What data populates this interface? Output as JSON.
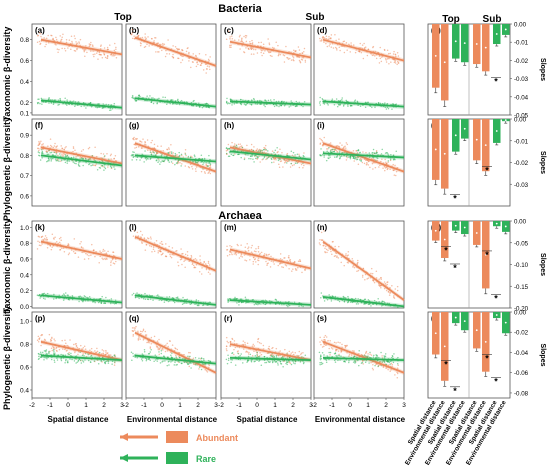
{
  "figure": {
    "title_bacteria": "Bacteria",
    "title_archaea": "Archaea",
    "col_top": "Top",
    "col_sub": "Sub",
    "bar_col_top": "Top",
    "bar_col_sub": "Sub",
    "row_labels": [
      "Taxonomic β-diversity",
      "Phylogenetic β-diversity",
      "Taxonomic β-diversity",
      "Phylogenetic β-diversity"
    ],
    "x_labels": [
      "Spatial distance",
      "Environmental distance",
      "Spatial distance",
      "Environmental distance"
    ],
    "x_ticks": [
      "-2",
      "-1",
      "0",
      "1",
      "2",
      "3"
    ],
    "bar_x_labels": [
      "Spatial distance",
      "Environmental distance",
      "Spatial distance",
      "Environmental distance"
    ],
    "slopes_label": "Slopes",
    "star": "*"
  },
  "legend": {
    "abundant_label": "Abundant",
    "rare_label": "Rare",
    "abundant_color": "#ec8a5c",
    "rare_color": "#2eb25a"
  },
  "chart_data": [
    {
      "type": "scatter",
      "panel": "(a)",
      "domain": "Bacteria",
      "layer": "Top",
      "x_variable": "Spatial distance",
      "yticks": [
        "0.8",
        "0.6",
        "0.4",
        "0.2",
        "0.1"
      ],
      "abundant_fit": [
        [
          -1.5,
          0.8
        ],
        [
          3,
          0.66
        ]
      ],
      "rare_fit": [
        [
          -1.5,
          0.22
        ],
        [
          3,
          0.15
        ]
      ]
    },
    {
      "type": "scatter",
      "panel": "(b)",
      "domain": "Bacteria",
      "layer": "Top",
      "x_variable": "Environmental distance",
      "yticks": [],
      "abundant_fit": [
        [
          -1.5,
          0.82
        ],
        [
          3,
          0.55
        ]
      ],
      "rare_fit": [
        [
          -1.5,
          0.24
        ],
        [
          3,
          0.16
        ]
      ]
    },
    {
      "type": "scatter",
      "panel": "(c)",
      "domain": "Bacteria",
      "layer": "Sub",
      "x_variable": "Spatial distance",
      "yticks": [],
      "abundant_fit": [
        [
          -1.5,
          0.78
        ],
        [
          3,
          0.63
        ]
      ],
      "rare_fit": [
        [
          -1.5,
          0.21
        ],
        [
          3,
          0.18
        ]
      ]
    },
    {
      "type": "scatter",
      "panel": "(d)",
      "domain": "Bacteria",
      "layer": "Sub",
      "x_variable": "Environmental distance",
      "yticks": [],
      "abundant_fit": [
        [
          -1.5,
          0.8
        ],
        [
          3,
          0.6
        ]
      ],
      "rare_fit": [
        [
          -1.5,
          0.21
        ],
        [
          3,
          0.16
        ]
      ]
    },
    {
      "type": "bar",
      "panel": "(e)",
      "domain": "Bacteria",
      "metric": "Taxonomic",
      "yticks": [
        "0.00",
        "-0.01",
        "-0.02",
        "-0.03",
        "-0.04",
        "-0.05"
      ],
      "ylim": [
        -0.05,
        0
      ],
      "groups": [
        "Top",
        "Sub"
      ],
      "categories": [
        "Spatial distance",
        "Environmental distance"
      ],
      "abundant": [
        -0.035,
        -0.042,
        -0.022,
        -0.026
      ],
      "rare": [
        -0.019,
        -0.021,
        -0.011,
        -0.006
      ],
      "significant": [
        false,
        false,
        false,
        true
      ]
    },
    {
      "type": "scatter",
      "panel": "(f)",
      "domain": "Bacteria",
      "layer": "Top",
      "x_variable": "Spatial distance",
      "yticks": [
        "0.9",
        "0.8",
        "0.7",
        "0.6"
      ],
      "abundant_fit": [
        [
          -1.5,
          0.84
        ],
        [
          3,
          0.76
        ]
      ],
      "rare_fit": [
        [
          -1.5,
          0.8
        ],
        [
          3,
          0.75
        ]
      ]
    },
    {
      "type": "scatter",
      "panel": "(g)",
      "domain": "Bacteria",
      "layer": "Top",
      "x_variable": "Environmental distance",
      "yticks": [],
      "abundant_fit": [
        [
          -1.5,
          0.86
        ],
        [
          3,
          0.72
        ]
      ],
      "rare_fit": [
        [
          -1.5,
          0.8
        ],
        [
          3,
          0.77
        ]
      ]
    },
    {
      "type": "scatter",
      "panel": "(h)",
      "domain": "Bacteria",
      "layer": "Sub",
      "x_variable": "Spatial distance",
      "yticks": [],
      "abundant_fit": [
        [
          -1.5,
          0.84
        ],
        [
          3,
          0.76
        ]
      ],
      "rare_fit": [
        [
          -1.5,
          0.82
        ],
        [
          3,
          0.78
        ]
      ]
    },
    {
      "type": "scatter",
      "panel": "(i)",
      "domain": "Bacteria",
      "layer": "Sub",
      "x_variable": "Environmental distance",
      "yticks": [],
      "abundant_fit": [
        [
          -1.5,
          0.86
        ],
        [
          3,
          0.72
        ]
      ],
      "rare_fit": [
        [
          -1.5,
          0.81
        ],
        [
          3,
          0.79
        ]
      ]
    },
    {
      "type": "bar",
      "panel": "(j)",
      "domain": "Bacteria",
      "metric": "Phylogenetic",
      "yticks": [
        "0.00",
        "-0.01",
        "-0.02",
        "-0.03"
      ],
      "ylim": [
        -0.04,
        0
      ],
      "groups": [
        "Top",
        "Sub"
      ],
      "categories": [
        "Spatial distance",
        "Environmental distance"
      ],
      "abundant": [
        -0.028,
        -0.032,
        -0.019,
        -0.024
      ],
      "rare": [
        -0.015,
        -0.009,
        -0.011,
        -0.001
      ],
      "significant": [
        false,
        true,
        true,
        false
      ]
    },
    {
      "type": "scatter",
      "panel": "(k)",
      "domain": "Archaea",
      "layer": "Top",
      "x_variable": "Spatial distance",
      "yticks": [
        "1.0",
        "0.8",
        "0.6",
        "0.4",
        "0.2",
        "0.0"
      ],
      "abundant_fit": [
        [
          -1.5,
          0.82
        ],
        [
          3,
          0.6
        ]
      ],
      "rare_fit": [
        [
          -1.5,
          0.14
        ],
        [
          3,
          0.05
        ]
      ]
    },
    {
      "type": "scatter",
      "panel": "(l)",
      "domain": "Archaea",
      "layer": "Top",
      "x_variable": "Environmental distance",
      "yticks": [],
      "abundant_fit": [
        [
          -1.5,
          0.88
        ],
        [
          3,
          0.45
        ]
      ],
      "rare_fit": [
        [
          -1.5,
          0.14
        ],
        [
          3,
          0.02
        ]
      ]
    },
    {
      "type": "scatter",
      "panel": "(m)",
      "domain": "Archaea",
      "layer": "Sub",
      "x_variable": "Spatial distance",
      "yticks": [],
      "abundant_fit": [
        [
          -1.5,
          0.72
        ],
        [
          3,
          0.48
        ]
      ],
      "rare_fit": [
        [
          -1.5,
          0.08
        ],
        [
          3,
          0.02
        ]
      ]
    },
    {
      "type": "scatter",
      "panel": "(n)",
      "domain": "Archaea",
      "layer": "Sub",
      "x_variable": "Environmental distance",
      "yticks": [],
      "abundant_fit": [
        [
          -1.5,
          0.82
        ],
        [
          3,
          0.08
        ]
      ],
      "rare_fit": [
        [
          -1.5,
          0.12
        ],
        [
          3,
          0.0
        ]
      ]
    },
    {
      "type": "bar",
      "panel": "(o)",
      "domain": "Archaea",
      "metric": "Taxonomic",
      "yticks": [
        "0.00",
        "-0.05",
        "-0.10",
        "-0.15",
        "-0.20"
      ],
      "ylim": [
        -0.2,
        0
      ],
      "groups": [
        "Top",
        "Sub"
      ],
      "categories": [
        "Spatial distance",
        "Environmental distance"
      ],
      "abundant": [
        -0.045,
        -0.085,
        -0.055,
        -0.155
      ],
      "rare": [
        -0.022,
        -0.03,
        -0.012,
        -0.025
      ],
      "significant": [
        true,
        true,
        true,
        true
      ]
    },
    {
      "type": "scatter",
      "panel": "(p)",
      "domain": "Archaea",
      "layer": "Top",
      "x_variable": "Spatial distance",
      "yticks": [
        "1.0",
        "0.8",
        "0.6",
        "0.4"
      ],
      "abundant_fit": [
        [
          -1.5,
          0.82
        ],
        [
          3,
          0.66
        ]
      ],
      "rare_fit": [
        [
          -1.5,
          0.7
        ],
        [
          3,
          0.66
        ]
      ]
    },
    {
      "type": "scatter",
      "panel": "(q)",
      "domain": "Archaea",
      "layer": "Top",
      "x_variable": "Environmental distance",
      "yticks": [],
      "abundant_fit": [
        [
          -1.5,
          0.9
        ],
        [
          3,
          0.55
        ]
      ],
      "rare_fit": [
        [
          -1.5,
          0.7
        ],
        [
          3,
          0.63
        ]
      ]
    },
    {
      "type": "scatter",
      "panel": "(r)",
      "domain": "Archaea",
      "layer": "Sub",
      "x_variable": "Spatial distance",
      "yticks": [],
      "abundant_fit": [
        [
          -1.5,
          0.8
        ],
        [
          3,
          0.66
        ]
      ],
      "rare_fit": [
        [
          -1.5,
          0.68
        ],
        [
          3,
          0.66
        ]
      ]
    },
    {
      "type": "scatter",
      "panel": "(s)",
      "domain": "Archaea",
      "layer": "Sub",
      "x_variable": "Environmental distance",
      "yticks": [],
      "abundant_fit": [
        [
          -1.5,
          0.82
        ],
        [
          3,
          0.55
        ]
      ],
      "rare_fit": [
        [
          -1.5,
          0.68
        ],
        [
          3,
          0.66
        ]
      ]
    },
    {
      "type": "bar",
      "panel": "(t)",
      "domain": "Archaea",
      "metric": "Phylogenetic",
      "yticks": [
        "0.00",
        "-0.02",
        "-0.04",
        "-0.06",
        "-0.08"
      ],
      "ylim": [
        -0.085,
        0
      ],
      "groups": [
        "Top",
        "Sub"
      ],
      "categories": [
        "Spatial distance",
        "Environmental distance"
      ],
      "abundant": [
        -0.042,
        -0.068,
        -0.036,
        -0.059
      ],
      "rare": [
        -0.011,
        -0.018,
        -0.006,
        -0.021
      ],
      "significant": [
        true,
        true,
        true,
        true
      ]
    }
  ]
}
